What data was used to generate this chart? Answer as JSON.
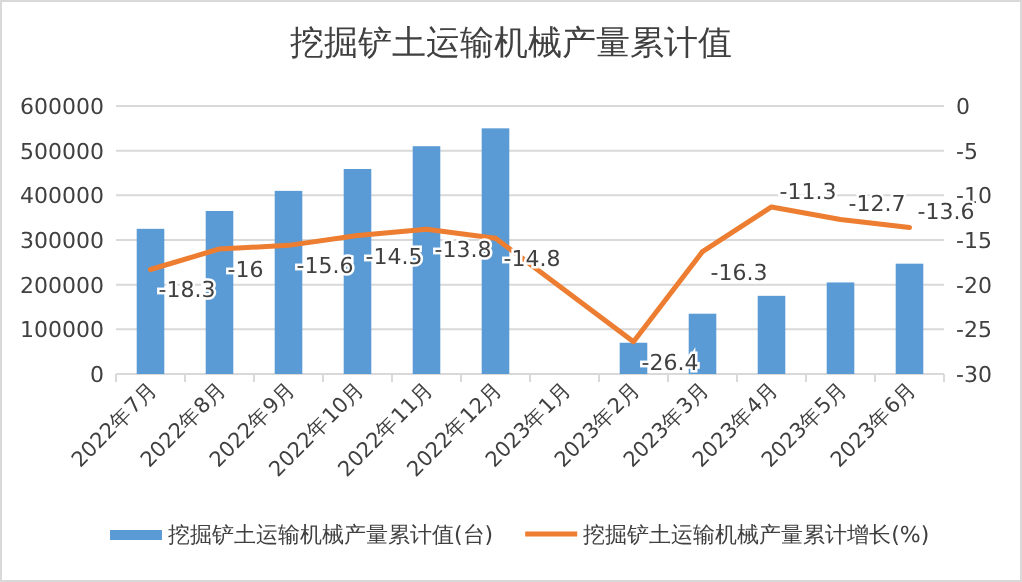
{
  "chart_data": {
    "type": "bar",
    "title": "挖掘铲土运输机械产量累计值",
    "categories": [
      "2022年7月",
      "2022年8月",
      "2022年9月",
      "2022年10月",
      "2022年11月",
      "2022年12月",
      "2023年1月",
      "2023年2月",
      "2023年3月",
      "2023年4月",
      "2023年5月",
      "2023年6月"
    ],
    "series": [
      {
        "name": "挖掘铲土运输机械产量累计值(台)",
        "color": "#5b9bd5",
        "values": [
          325000,
          365000,
          410000,
          459000,
          510000,
          550000,
          null,
          70000,
          135000,
          175000,
          205000,
          247000
        ]
      },
      {
        "name": "挖掘铲土运输机械产量累计增长(%)",
        "type": "line",
        "axis": "y2",
        "color": "#ed7d31",
        "values": [
          -18.3,
          -16,
          -15.6,
          -14.5,
          -13.8,
          -14.8,
          null,
          -26.4,
          -16.3,
          -11.3,
          -12.7,
          -13.6
        ],
        "value_labels": [
          "-18.3",
          "-16",
          "-15.6",
          "-14.5",
          "-13.8",
          "-14.8",
          null,
          "-26.4",
          "-16.3",
          "-11.3",
          "-12.7",
          "-13.6"
        ]
      }
    ],
    "ylim": [
      0,
      600000
    ],
    "yticks": [
      0,
      100000,
      200000,
      300000,
      400000,
      500000,
      600000
    ],
    "y2lim": [
      -30,
      0
    ],
    "y2ticks": [
      -30,
      -25,
      -20,
      -15,
      -10,
      -5,
      0
    ],
    "grid": "y",
    "legend": "bottom",
    "marker": "none",
    "line_style": "solid"
  }
}
